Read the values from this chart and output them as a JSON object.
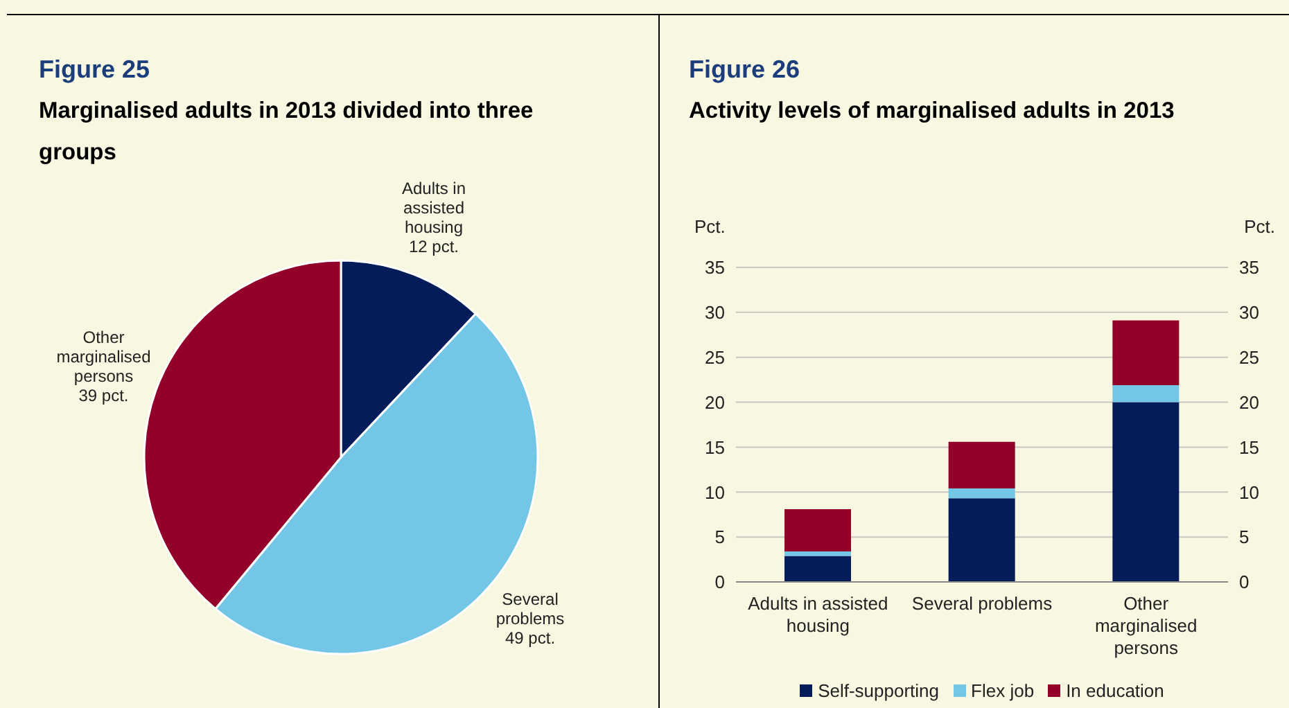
{
  "chart_data": [
    {
      "type": "pie",
      "title": "Figure 25",
      "subtitle": "Marginalised adults in 2013 divided into three groups",
      "categories": [
        "Adults in assisted housing",
        "Several problems",
        "Other marginalised persons"
      ],
      "values": [
        12,
        49,
        39
      ],
      "value_labels": [
        "12 pct.",
        "49 pct.",
        "39 pct."
      ],
      "colors": [
        "#041c5a",
        "#74c6e6",
        "#930029"
      ]
    },
    {
      "type": "bar",
      "title": "Figure 26",
      "subtitle": "Activity levels of marginalised adults in 2013",
      "categories": [
        "Adults in assisted housing",
        "Several problems",
        "Other marginalised persons"
      ],
      "stacked": true,
      "ylabel": "Pct.",
      "y2label": "Pct.",
      "ylim": [
        0,
        35
      ],
      "yticks": [
        0,
        5,
        10,
        15,
        20,
        25,
        30,
        35
      ],
      "y2lim": [
        0,
        35
      ],
      "y2ticks": [
        0,
        5,
        10,
        15,
        20,
        25,
        30,
        35
      ],
      "grid": "y",
      "legend": "bottom",
      "series": [
        {
          "name": "Self-supporting",
          "color": "#041c5a",
          "values": [
            2.9,
            9.3,
            20
          ]
        },
        {
          "name": "Flex job",
          "color": "#74c6e6",
          "values": [
            0.5,
            1.1,
            1.9
          ]
        },
        {
          "name": "In education",
          "color": "#930029",
          "values": [
            4.7,
            5.2,
            7.2
          ]
        }
      ]
    }
  ]
}
